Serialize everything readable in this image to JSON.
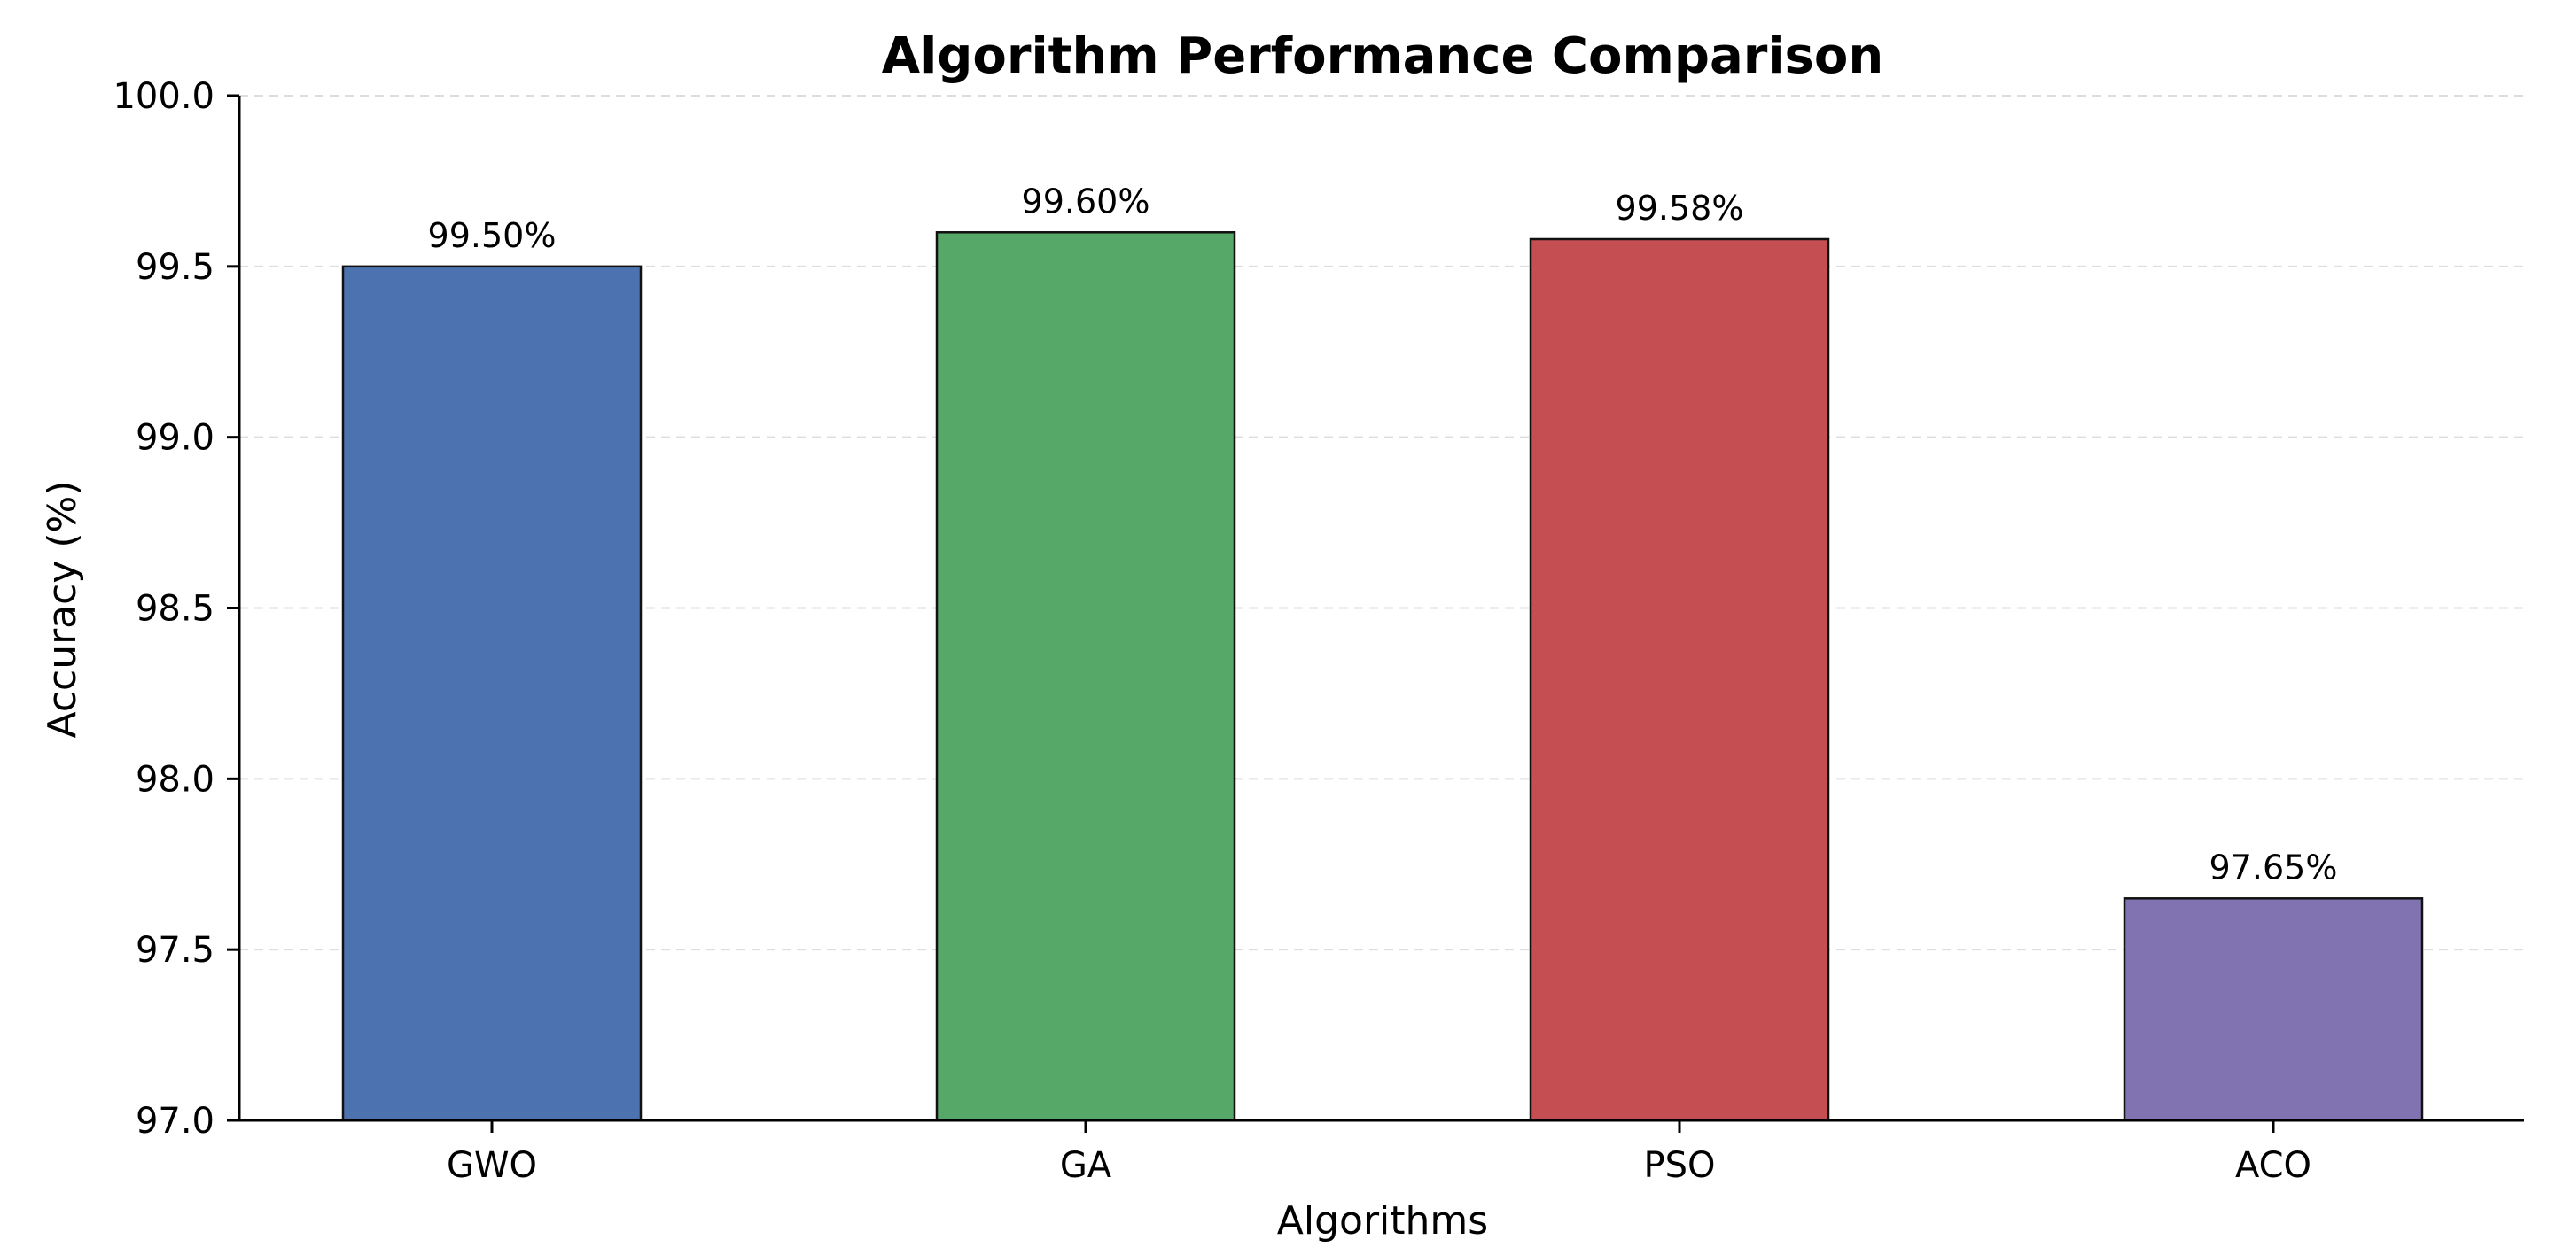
{
  "chart_data": {
    "type": "bar",
    "title": "Algorithm Performance Comparison",
    "xlabel": "Algorithms",
    "ylabel": "Accuracy (%)",
    "categories": [
      "GWO",
      "GA",
      "PSO",
      "ACO"
    ],
    "values": [
      99.5,
      99.6,
      99.58,
      97.65
    ],
    "value_labels": [
      "99.50%",
      "99.60%",
      "99.58%",
      "97.65%"
    ],
    "colors": [
      "#4c72b0",
      "#55a868",
      "#c44e52",
      "#8172b2"
    ],
    "ylim": [
      97.0,
      100.0
    ],
    "yticks": [
      97.0,
      97.5,
      98.0,
      98.5,
      99.0,
      99.5,
      100.0
    ],
    "ytick_labels": [
      "97.0",
      "97.5",
      "98.0",
      "98.5",
      "99.0",
      "99.5",
      "100.0"
    ],
    "grid": "y-dashed",
    "legend": "none"
  }
}
